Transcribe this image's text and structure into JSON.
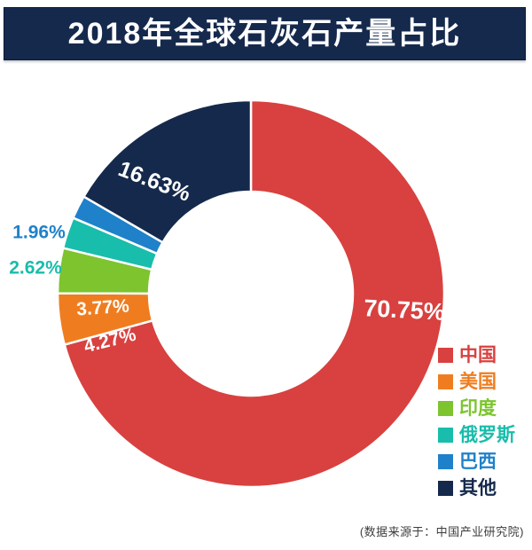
{
  "title": "2018年全球石灰石产量占比",
  "source_note": "(数据来源于：中国产业研究院)",
  "colors": {
    "title_bar_bg": "#15294c",
    "title_text": "#ffffff",
    "background": "#ffffff",
    "source_text": "#3c3c3c"
  },
  "chart_data": {
    "type": "pie",
    "subtype": "donut",
    "title": "2018年全球石灰石产量占比",
    "legend_position": "right",
    "direction": "clockwise",
    "start_angle_deg": 0,
    "slices": [
      {
        "name": "中国",
        "value": 70.75,
        "label": "70.75%",
        "color": "#d8413f",
        "label_placement": "inside"
      },
      {
        "name": "美国",
        "value": 4.27,
        "label": "4.27%",
        "color": "#ef7d20",
        "label_placement": "inside"
      },
      {
        "name": "印度",
        "value": 3.77,
        "label": "3.77%",
        "color": "#7dc42f",
        "label_placement": "inside"
      },
      {
        "name": "俄罗斯",
        "value": 2.62,
        "label": "2.62%",
        "color": "#19bdab",
        "label_placement": "outside"
      },
      {
        "name": "巴西",
        "value": 1.96,
        "label": "1.96%",
        "color": "#1f81c9",
        "label_placement": "outside"
      },
      {
        "name": "其他",
        "value": 16.63,
        "label": "16.63%",
        "color": "#15294c",
        "label_placement": "inside"
      }
    ]
  }
}
